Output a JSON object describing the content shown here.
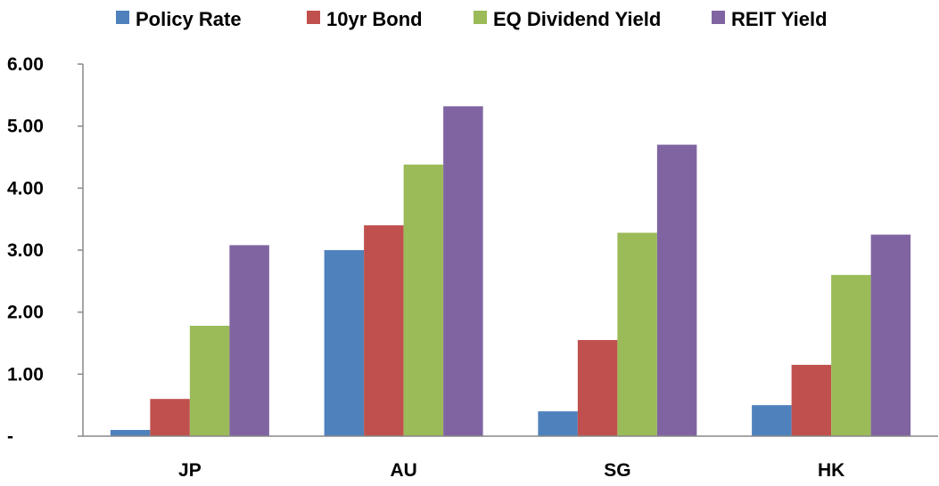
{
  "chart_data": {
    "type": "bar",
    "title": "",
    "xlabel": "",
    "ylabel": "",
    "ylim": [
      0,
      6
    ],
    "yticks": [
      0,
      1,
      2,
      3,
      4,
      5,
      6
    ],
    "ytick_labels": [
      "-",
      "1.00",
      "2.00",
      "3.00",
      "4.00",
      "5.00",
      "6.00"
    ],
    "categories": [
      "JP",
      "AU",
      "SG",
      "HK"
    ],
    "grid": false,
    "legend_position": "top",
    "series": [
      {
        "name": "Policy Rate",
        "color": "#4F81BD",
        "values": [
          0.1,
          3.0,
          0.4,
          0.5
        ]
      },
      {
        "name": "10yr Bond",
        "color": "#C0504D",
        "values": [
          0.6,
          3.4,
          1.55,
          1.15
        ]
      },
      {
        "name": "EQ Dividend Yield",
        "color": "#9BBB59",
        "values": [
          1.78,
          4.38,
          3.28,
          2.6
        ]
      },
      {
        "name": "REIT Yield",
        "color": "#8064A2",
        "values": [
          3.08,
          5.32,
          4.7,
          3.25
        ]
      }
    ]
  }
}
